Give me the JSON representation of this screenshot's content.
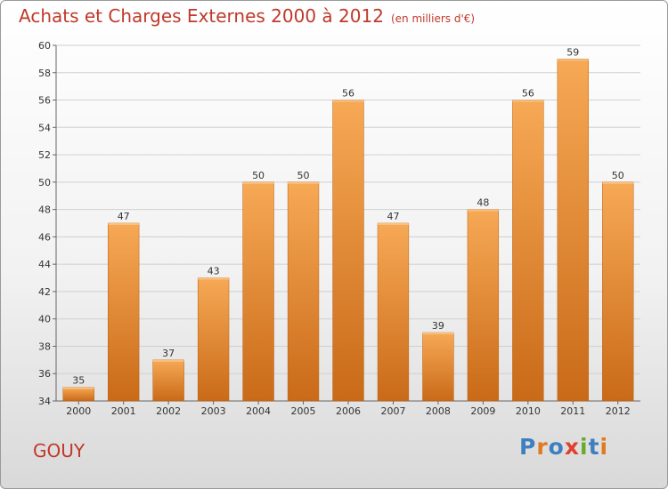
{
  "header": {
    "title": "Achats et Charges Externes 2000 à 2012",
    "subtitle": "(en milliers d'€)"
  },
  "footer": {
    "commune": "GOUY",
    "brand": "Proxiti",
    "brand_colors": [
      "#3f7fc0",
      "#e07a1f",
      "#3f7fc0",
      "#e04030",
      "#6aaa2a",
      "#3f7fc0",
      "#e07a1f"
    ]
  },
  "colors": {
    "title": "#c0392b",
    "bar_light": "#f7a955",
    "bar_dark": "#c96a18",
    "grid": "#d0d0d0"
  },
  "chart_data": {
    "type": "bar",
    "title": "Achats et Charges Externes 2000 à 2012",
    "subtitle": "(en milliers d'€)",
    "categories": [
      "2000",
      "2001",
      "2002",
      "2003",
      "2004",
      "2005",
      "2006",
      "2007",
      "2008",
      "2009",
      "2010",
      "2011",
      "2012"
    ],
    "values": [
      35,
      47,
      37,
      43,
      50,
      50,
      56,
      47,
      39,
      48,
      56,
      59,
      50
    ],
    "ylim": [
      34,
      60
    ],
    "yticks": [
      34,
      36,
      38,
      40,
      42,
      44,
      46,
      48,
      50,
      52,
      54,
      56,
      58,
      60
    ],
    "grid": true,
    "data_labels": true
  }
}
